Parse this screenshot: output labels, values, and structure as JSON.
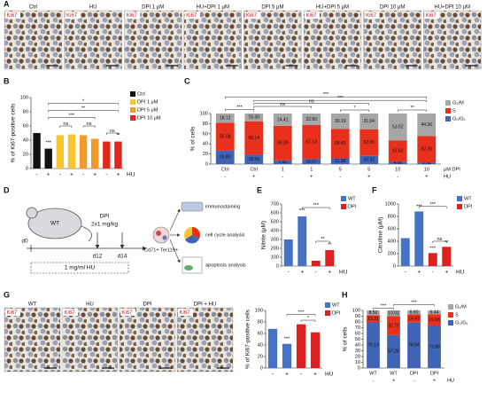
{
  "panels": {
    "a": "A",
    "b": "B",
    "c": "C",
    "d": "D",
    "e": "E",
    "f": "F",
    "g": "G",
    "h": "H"
  },
  "panel_a": {
    "stain": "Ki67",
    "labels": [
      "Ctrl",
      "HU",
      "DPI 1 μM",
      "HU+DPI 1 μM",
      "DPI 5 μM",
      "HU+DPI 5 μM",
      "DPI 10 μM",
      "HU+DPI 10 μM"
    ]
  },
  "diagram_d": {
    "mouse": "WT",
    "drug": "DPI",
    "dose": "2x1 mg/kg",
    "days": [
      "d0",
      "d12",
      "d14"
    ],
    "hu": "1 mg/ml HU",
    "cells": "Cd71+ Ter119+",
    "analyses": [
      "immunostaining",
      "cell cycle analysis",
      "apoptosis analysis"
    ]
  },
  "panel_g_images": {
    "stain": "Ki67",
    "labels": [
      "WT",
      "HU",
      "DPI",
      "DPI + HU"
    ]
  },
  "chart_data": [
    {
      "type": "bar",
      "ylabel": "% of Ki67-positive cells",
      "x_label": "HU",
      "categories": [
        "-",
        "+",
        "-",
        "+",
        "-",
        "+",
        "-",
        "+"
      ],
      "values": [
        50,
        28,
        47,
        48,
        47,
        42,
        38,
        38
      ],
      "colors": [
        "#111111",
        "#111111",
        "#f7c531",
        "#f7c531",
        "#f39a2b",
        "#f39a2b",
        "#e2261d",
        "#e2261d"
      ],
      "legend": [
        {
          "name": "Ctrl",
          "color": "#111111"
        },
        {
          "name": "DPI 1 μM",
          "color": "#f7c531"
        },
        {
          "name": "DPI 5 μM",
          "color": "#f39a2b"
        },
        {
          "name": "DPI 10 μM",
          "color": "#e2261d"
        }
      ],
      "ylim": [
        0,
        100
      ],
      "yticks": [
        0,
        20,
        40,
        60,
        80,
        100
      ],
      "annotations": [
        "***",
        "*",
        "**",
        "***",
        "ns",
        "ns",
        "ns",
        "**"
      ]
    },
    {
      "type": "stacked_bar",
      "ylabel": "% of cells",
      "x_label": "μM DPI",
      "hu_label": "HU",
      "categories": [
        "Ctrl",
        "Ctrl",
        "1",
        "1",
        "5",
        "5",
        "10",
        "10"
      ],
      "hu": [
        "-",
        "+",
        "-",
        "+",
        "-",
        "+",
        "-",
        "+"
      ],
      "series": [
        {
          "name": "G₂/M",
          "color": "#a6a6a6",
          "values": [
            18.12,
            15.3,
            24.41,
            22.8,
            30.19,
            31.04,
            53.52,
            44.36
          ],
          "value_labels": [
            "18.12",
            "15.30",
            "24.41",
            "22.80",
            "30.19",
            "31.04",
            "53.52",
            "44.36"
          ]
        },
        {
          "name": "S",
          "color": "#e8301c",
          "values": [
            55.08,
            66.14,
            68.29,
            67.13,
            58.43,
            52.65,
            41.62,
            52.3
          ],
          "value_labels": [
            "55.08",
            "66.14",
            "68.29",
            "67.13",
            "58.43",
            "52.65",
            "41.62",
            "52.30"
          ]
        },
        {
          "name": "G₀/G₁",
          "color": "#3f63b5",
          "values": [
            26.8,
            18.56,
            7.31,
            10.07,
            11.38,
            16.32,
            4.86,
            3.34
          ],
          "value_labels": [
            "26.80",
            "18.56",
            "7.31",
            "10.07",
            "11.38",
            "16.32",
            "4.86",
            "3.34"
          ]
        }
      ],
      "ylim": [
        0,
        100
      ],
      "yticks": [
        0,
        20,
        40,
        60,
        80,
        100
      ],
      "annotations": [
        "***",
        "ns",
        "ns",
        "***",
        "***",
        "*",
        "**"
      ]
    },
    {
      "type": "bar",
      "ylabel": "Nitrite (μM)",
      "x_label": "HU",
      "categories": [
        "-",
        "+",
        "-",
        "+"
      ],
      "values": [
        300,
        560,
        60,
        180
      ],
      "colors": [
        "#4472c4",
        "#4472c4",
        "#e02020",
        "#e02020"
      ],
      "legend": [
        {
          "name": "WT",
          "color": "#4472c4"
        },
        {
          "name": "DPI",
          "color": "#e02020"
        }
      ],
      "ylim": [
        0,
        700
      ],
      "yticks": [
        0,
        100,
        200,
        300,
        400,
        500,
        600,
        700
      ],
      "annotations": [
        "***",
        "***",
        "**",
        "**"
      ]
    },
    {
      "type": "bar",
      "ylabel": "Citrulline (μM)",
      "x_label": "HU",
      "categories": [
        "-",
        "+",
        "-",
        "+"
      ],
      "values": [
        450,
        880,
        210,
        310
      ],
      "colors": [
        "#4472c4",
        "#4472c4",
        "#e02020",
        "#e02020"
      ],
      "legend": [
        {
          "name": "WT",
          "color": "#4472c4"
        },
        {
          "name": "DPI",
          "color": "#e02020"
        }
      ],
      "ylim": [
        0,
        1000
      ],
      "yticks": [
        0,
        200,
        400,
        600,
        800,
        1000
      ],
      "annotations": [
        "***",
        "***",
        "ns",
        "***",
        "**"
      ]
    },
    {
      "type": "bar",
      "ylabel": "% of Ki67-positive cells",
      "x_label": "HU",
      "categories": [
        "-",
        "+",
        "-",
        "+"
      ],
      "values": [
        68,
        42,
        76,
        62
      ],
      "colors": [
        "#4472c4",
        "#4472c4",
        "#e02020",
        "#e02020"
      ],
      "legend": [
        {
          "name": "WT",
          "color": "#4472c4"
        },
        {
          "name": "DPI",
          "color": "#e02020"
        }
      ],
      "ylim": [
        0,
        100
      ],
      "yticks": [
        0,
        20,
        40,
        60,
        80,
        100
      ],
      "annotations": [
        "***",
        "***",
        "*"
      ]
    },
    {
      "type": "stacked_bar",
      "ylabel": "% of cells",
      "hu_label": "HU",
      "categories": [
        "WT",
        "WT",
        "DPI",
        "DPI"
      ],
      "hu": [
        "-",
        "+",
        "-",
        "+"
      ],
      "series": [
        {
          "name": "G₂/M",
          "color": "#a6a6a6",
          "values": [
            8.5,
            10.02,
            6.6,
            6.44
          ],
          "value_labels": [
            "8.50",
            "10.02",
            "6.60",
            "6.44"
          ]
        },
        {
          "name": "S",
          "color": "#e8301c",
          "values": [
            12.31,
            32.7,
            14.43,
            19.68
          ],
          "value_labels": [
            "12.31",
            "32.70",
            "14.43",
            "19.68"
          ]
        },
        {
          "name": "G₀/G₁",
          "color": "#3f63b5",
          "values": [
            79.19,
            57.28,
            78.94,
            73.88
          ],
          "value_labels": [
            "79.19",
            "57.28",
            "78.94",
            "73.88"
          ]
        }
      ],
      "ylim": [
        0,
        100
      ],
      "yticks": [
        0,
        10,
        20,
        30,
        40,
        50,
        60,
        70,
        80,
        90,
        100
      ],
      "annotations": [
        "***",
        "***"
      ]
    }
  ]
}
